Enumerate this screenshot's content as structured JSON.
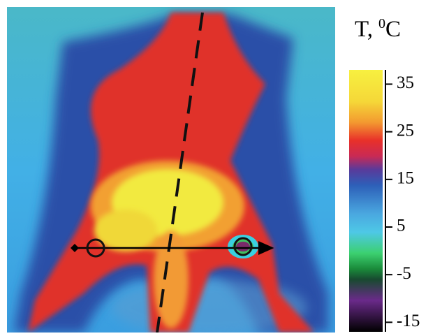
{
  "colorbar": {
    "title": {
      "prefix": "T,",
      "sup": "0",
      "unit": "C"
    },
    "ylim": [
      -17,
      38
    ],
    "yticks": [
      35,
      25,
      15,
      5,
      -5,
      -15
    ]
  }
}
